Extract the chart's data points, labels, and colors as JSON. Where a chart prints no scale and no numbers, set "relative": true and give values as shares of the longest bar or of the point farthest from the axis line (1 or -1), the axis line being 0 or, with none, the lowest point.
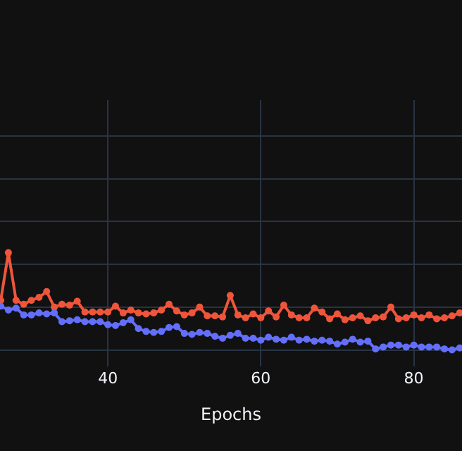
{
  "chart_data": {
    "type": "line",
    "xlabel": "Epochs",
    "relative": true,
    "grid": true,
    "marker": "circle",
    "line_style": "solid",
    "x": [
      26,
      27,
      28,
      29,
      30,
      31,
      32,
      33,
      34,
      35,
      36,
      37,
      38,
      39,
      40,
      41,
      42,
      43,
      44,
      45,
      46,
      47,
      48,
      49,
      50,
      51,
      52,
      53,
      54,
      55,
      56,
      57,
      58,
      59,
      60,
      61,
      62,
      63,
      64,
      65,
      66,
      67,
      68,
      69,
      70,
      71,
      72,
      73,
      74,
      75,
      76,
      77,
      78,
      79,
      80,
      81,
      82,
      83,
      84,
      85,
      86
    ],
    "xlim": [
      25.9,
      86.3
    ],
    "xticks": [
      40,
      60,
      80
    ],
    "tick_labels": "x",
    "series": [
      {
        "color": "#ef553b",
        "values": [
          0.51,
          1,
          0.51,
          0.47,
          0.51,
          0.54,
          0.6,
          0.44,
          0.47,
          0.46,
          0.5,
          0.39,
          0.39,
          0.39,
          0.39,
          0.45,
          0.38,
          0.41,
          0.38,
          0.37,
          0.38,
          0.41,
          0.47,
          0.4,
          0.36,
          0.38,
          0.44,
          0.35,
          0.35,
          0.34,
          0.56,
          0.36,
          0.33,
          0.37,
          0.33,
          0.4,
          0.34,
          0.46,
          0.36,
          0.33,
          0.33,
          0.43,
          0.39,
          0.32,
          0.37,
          0.31,
          0.33,
          0.35,
          0.3,
          0.33,
          0.34,
          0.44,
          0.32,
          0.33,
          0.36,
          0.33,
          0.36,
          0.32,
          0.33,
          0.35,
          0.38
        ]
      },
      {
        "color": "#636efa",
        "values": [
          0.45,
          0.41,
          0.43,
          0.36,
          0.36,
          0.38,
          0.37,
          0.38,
          0.29,
          0.3,
          0.31,
          0.29,
          0.29,
          0.29,
          0.26,
          0.25,
          0.28,
          0.31,
          0.22,
          0.19,
          0.18,
          0.19,
          0.23,
          0.24,
          0.17,
          0.16,
          0.18,
          0.17,
          0.14,
          0.12,
          0.15,
          0.17,
          0.12,
          0.12,
          0.1,
          0.13,
          0.11,
          0.1,
          0.13,
          0.1,
          0.11,
          0.09,
          0.1,
          0.09,
          0.06,
          0.08,
          0.11,
          0.08,
          0.09,
          0.01,
          0.03,
          0.05,
          0.05,
          0.03,
          0.05,
          0.03,
          0.03,
          0.03,
          0.01,
          0,
          0.02
        ]
      }
    ]
  }
}
